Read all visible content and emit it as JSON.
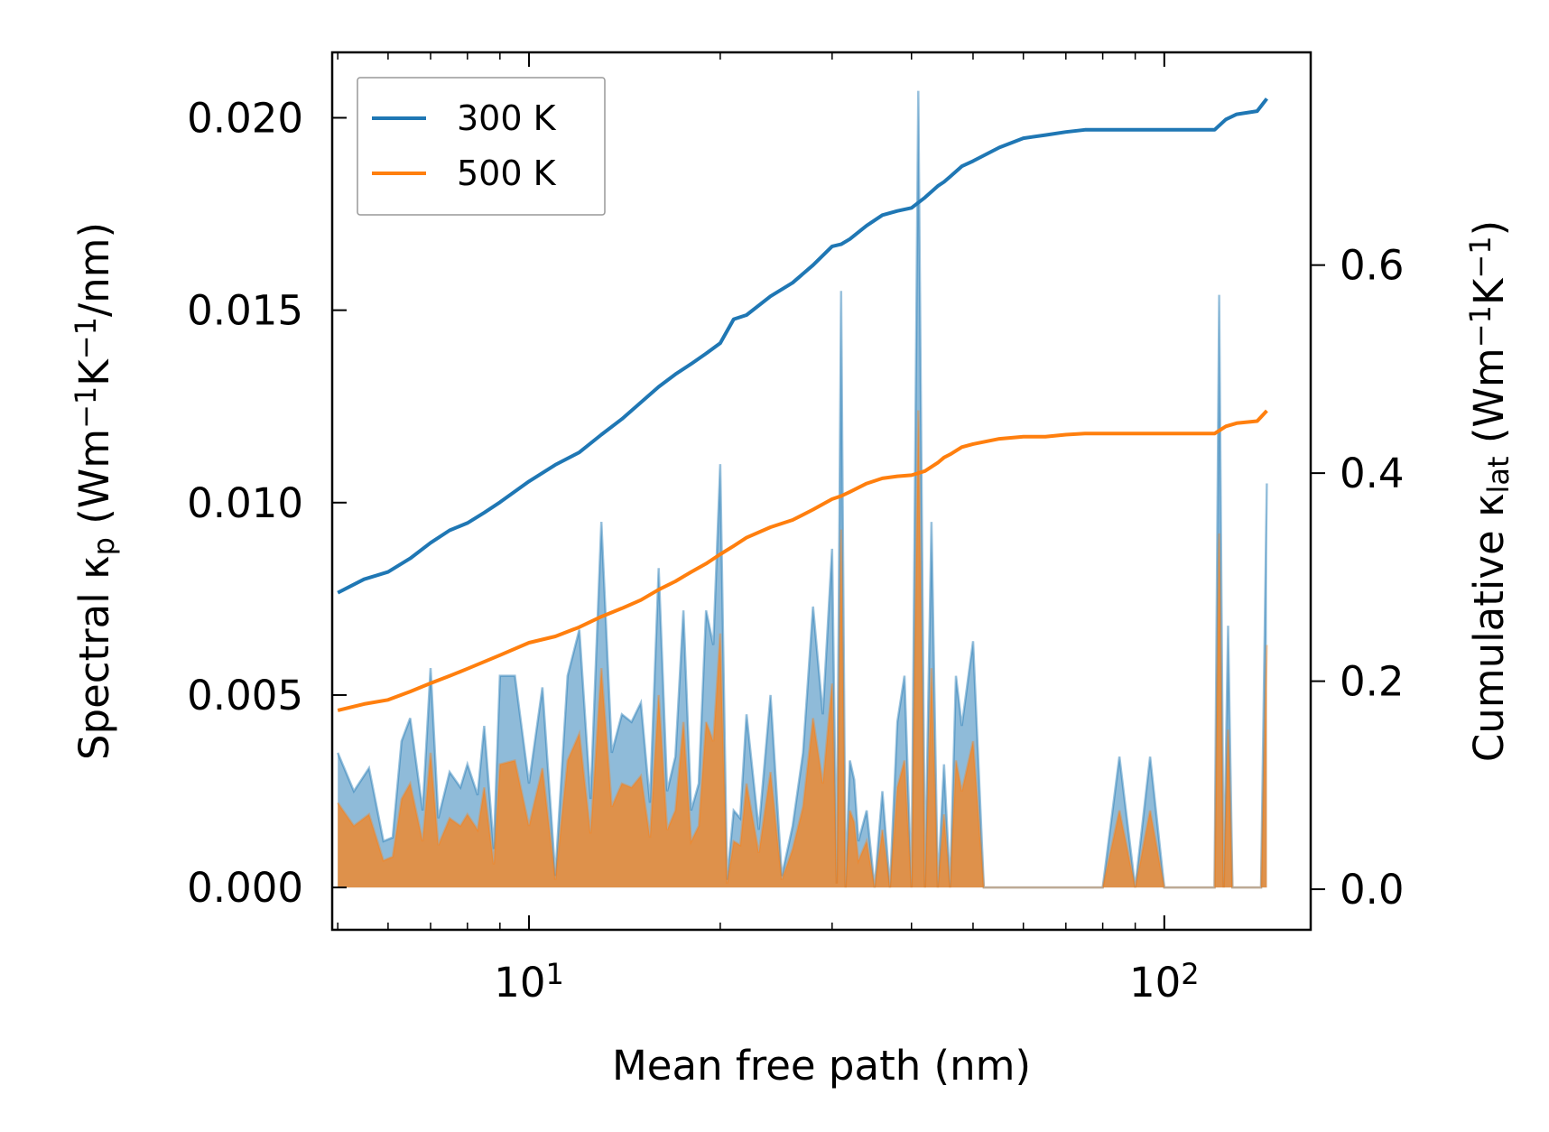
{
  "chart_data": {
    "type": "line",
    "x_scale": "log",
    "xlabel": "Mean free path (nm)",
    "ylabel_left": {
      "base": "Spectral κ",
      "sub": "p",
      "unit_open": " (Wm",
      "sup1": "−1",
      "mid": "K",
      "sup2": "−1",
      "unit_close": "/nm)"
    },
    "ylabel_right": {
      "base": "Cumulative κ",
      "sub": "lat",
      "unit_open": " (Wm",
      "sup1": "−1",
      "mid": "K",
      "sup2": "−1",
      "unit_close": ")"
    },
    "xlim": [
      4.9,
      170
    ],
    "ylim_left": [
      -0.0011,
      0.0217
    ],
    "ylim_right": [
      -0.039,
      0.8045
    ],
    "x_ticks": [
      {
        "value": 10,
        "base": "10",
        "exp": "1"
      },
      {
        "value": 100,
        "base": "10",
        "exp": "2"
      }
    ],
    "y_ticks_left": [
      "0.000",
      "0.005",
      "0.010",
      "0.015",
      "0.020"
    ],
    "y_ticks_right": [
      "0.0",
      "0.2",
      "0.4",
      "0.6"
    ],
    "legend": {
      "position": "top-left",
      "entries": [
        "300 K",
        "500 K"
      ]
    },
    "colors": {
      "s300": "#1f77b4",
      "s500": "#ff7f0e",
      "spec300_fill": "#1f77b4",
      "spec500_fill": "#ff7f0e"
    },
    "series": [
      {
        "name": "300 K",
        "axis": "right",
        "x": [
          5,
          5.5,
          6,
          6.5,
          7,
          7.5,
          8,
          8.5,
          9,
          10,
          11,
          12,
          13,
          14,
          15,
          16,
          17,
          18,
          19,
          20,
          21,
          22,
          24,
          26,
          28,
          30,
          31,
          32,
          34,
          36,
          38,
          40,
          42,
          44,
          45,
          46,
          48,
          50,
          55,
          60,
          65,
          70,
          75,
          80,
          90,
          100,
          110,
          120,
          125,
          130,
          140,
          145
        ],
        "values": [
          0.285,
          0.298,
          0.305,
          0.318,
          0.333,
          0.345,
          0.352,
          0.362,
          0.372,
          0.392,
          0.408,
          0.42,
          0.437,
          0.452,
          0.468,
          0.483,
          0.495,
          0.505,
          0.515,
          0.525,
          0.548,
          0.552,
          0.57,
          0.583,
          0.6,
          0.618,
          0.62,
          0.625,
          0.638,
          0.648,
          0.652,
          0.655,
          0.665,
          0.676,
          0.68,
          0.685,
          0.695,
          0.7,
          0.713,
          0.722,
          0.725,
          0.728,
          0.73,
          0.73,
          0.73,
          0.73,
          0.73,
          0.73,
          0.74,
          0.745,
          0.748,
          0.76
        ]
      },
      {
        "name": "500 K",
        "axis": "right",
        "x": [
          5,
          5.5,
          6,
          6.5,
          7,
          7.5,
          8,
          9,
          10,
          11,
          12,
          13,
          14,
          15,
          16,
          17,
          18,
          19,
          20,
          21,
          22,
          24,
          26,
          28,
          30,
          31,
          32,
          34,
          36,
          38,
          40,
          42,
          44,
          45,
          46,
          48,
          50,
          55,
          60,
          65,
          70,
          75,
          80,
          90,
          100,
          110,
          120,
          125,
          130,
          140,
          145
        ],
        "values": [
          0.172,
          0.178,
          0.182,
          0.19,
          0.198,
          0.205,
          0.212,
          0.225,
          0.237,
          0.243,
          0.252,
          0.262,
          0.27,
          0.278,
          0.288,
          0.296,
          0.305,
          0.313,
          0.322,
          0.33,
          0.338,
          0.348,
          0.355,
          0.365,
          0.375,
          0.378,
          0.382,
          0.39,
          0.395,
          0.397,
          0.398,
          0.402,
          0.41,
          0.415,
          0.418,
          0.425,
          0.428,
          0.433,
          0.435,
          0.435,
          0.437,
          0.438,
          0.438,
          0.438,
          0.438,
          0.438,
          0.438,
          0.445,
          0.448,
          0.45,
          0.46
        ]
      },
      {
        "name": "300 K spectral",
        "axis": "left",
        "x": [
          5,
          5.3,
          5.6,
          5.9,
          6.1,
          6.3,
          6.5,
          6.8,
          7,
          7.2,
          7.5,
          7.8,
          8,
          8.3,
          8.5,
          8.8,
          9,
          9.5,
          10,
          10.5,
          11,
          11.5,
          12,
          12.5,
          13,
          13.5,
          14,
          14.5,
          15,
          15.5,
          16,
          16.5,
          17,
          17.5,
          18,
          18.5,
          19,
          19.5,
          20,
          20.5,
          21,
          21.5,
          22,
          23,
          24,
          25,
          26,
          27,
          28,
          29,
          30,
          30.5,
          31,
          31.5,
          32,
          32.5,
          33,
          34,
          35,
          36,
          37,
          38,
          39,
          40,
          41,
          42,
          43,
          44,
          45,
          46,
          47,
          48,
          50,
          52,
          55,
          58,
          60,
          62,
          65,
          70,
          75,
          80,
          85,
          90,
          95,
          100,
          110,
          120,
          122,
          124,
          126,
          128,
          130,
          132,
          134,
          138,
          140,
          142,
          145
        ],
        "values": [
          0.0035,
          0.0025,
          0.0031,
          0.0012,
          0.0013,
          0.0038,
          0.0044,
          0.002,
          0.0057,
          0.0018,
          0.003,
          0.0026,
          0.0032,
          0.0024,
          0.0042,
          0.001,
          0.0055,
          0.0055,
          0.0027,
          0.0052,
          0.0003,
          0.0055,
          0.0067,
          0.0023,
          0.0095,
          0.0035,
          0.0045,
          0.0043,
          0.0048,
          0.0022,
          0.0083,
          0.0025,
          0.0034,
          0.0072,
          0.002,
          0.0027,
          0.0072,
          0.0063,
          0.011,
          0.0002,
          0.002,
          0.0018,
          0.0045,
          0.0015,
          0.005,
          0.0003,
          0.0016,
          0.0035,
          0.0073,
          0.0045,
          0.0088,
          0.0001,
          0.0155,
          0.0,
          0.0033,
          0.0028,
          0.0012,
          0.002,
          0.0,
          0.0025,
          0.0,
          0.0043,
          0.0055,
          0.0,
          0.0207,
          0.0,
          0.0095,
          0.0,
          0.0032,
          0.0,
          0.0055,
          0.0042,
          0.0064,
          0.0,
          0.0,
          0.0,
          0.0,
          0.0,
          0.0,
          0.0,
          0.0,
          0.0,
          0.0034,
          0.0,
          0.0034,
          0.0,
          0.0,
          0.0,
          0.0154,
          0.0,
          0.0068,
          0.0,
          0.0,
          0.0,
          0.0,
          0.0,
          0.0,
          0.0,
          0.0105
        ]
      },
      {
        "name": "500 K spectral",
        "axis": "left",
        "x": [
          5,
          5.3,
          5.6,
          5.9,
          6.1,
          6.3,
          6.5,
          6.8,
          7,
          7.2,
          7.5,
          7.8,
          8,
          8.3,
          8.5,
          8.8,
          9,
          9.5,
          10,
          10.5,
          11,
          11.5,
          12,
          12.5,
          13,
          13.5,
          14,
          14.5,
          15,
          15.5,
          16,
          16.5,
          17,
          17.5,
          18,
          18.5,
          19,
          19.5,
          20,
          20.5,
          21,
          21.5,
          22,
          23,
          24,
          25,
          26,
          27,
          28,
          29,
          30,
          30.5,
          31,
          31.5,
          32,
          32.5,
          33,
          34,
          35,
          36,
          37,
          38,
          39,
          40,
          41,
          42,
          43,
          44,
          45,
          46,
          47,
          48,
          50,
          52,
          55,
          58,
          60,
          62,
          65,
          70,
          75,
          80,
          85,
          90,
          95,
          100,
          110,
          120,
          122,
          124,
          126,
          128,
          130,
          132,
          134,
          138,
          140,
          142,
          145
        ],
        "values": [
          0.0022,
          0.0016,
          0.0019,
          0.0007,
          0.0008,
          0.0023,
          0.0027,
          0.0012,
          0.0035,
          0.0011,
          0.0018,
          0.0016,
          0.0019,
          0.0015,
          0.0026,
          0.0006,
          0.0032,
          0.0033,
          0.0016,
          0.0031,
          0.0002,
          0.0033,
          0.004,
          0.0014,
          0.0057,
          0.0021,
          0.0027,
          0.0026,
          0.0029,
          0.0013,
          0.005,
          0.0015,
          0.002,
          0.0043,
          0.0012,
          0.0016,
          0.0043,
          0.0038,
          0.0066,
          0.0001,
          0.0012,
          0.0011,
          0.0027,
          0.0009,
          0.003,
          0.0002,
          0.001,
          0.0021,
          0.0044,
          0.0027,
          0.0053,
          0.0001,
          0.0093,
          0.0,
          0.002,
          0.0017,
          0.0007,
          0.0012,
          0.0,
          0.0015,
          0.0,
          0.0026,
          0.0033,
          0.0,
          0.0124,
          0.0,
          0.0057,
          0.0,
          0.0019,
          0.0,
          0.0033,
          0.0025,
          0.0038,
          0.0,
          0.0,
          0.0,
          0.0,
          0.0,
          0.0,
          0.0,
          0.0,
          0.0,
          0.002,
          0.0,
          0.002,
          0.0,
          0.0,
          0.0,
          0.0092,
          0.0,
          0.0041,
          0.0,
          0.0,
          0.0,
          0.0,
          0.0,
          0.0,
          0.0,
          0.0063
        ]
      }
    ]
  }
}
